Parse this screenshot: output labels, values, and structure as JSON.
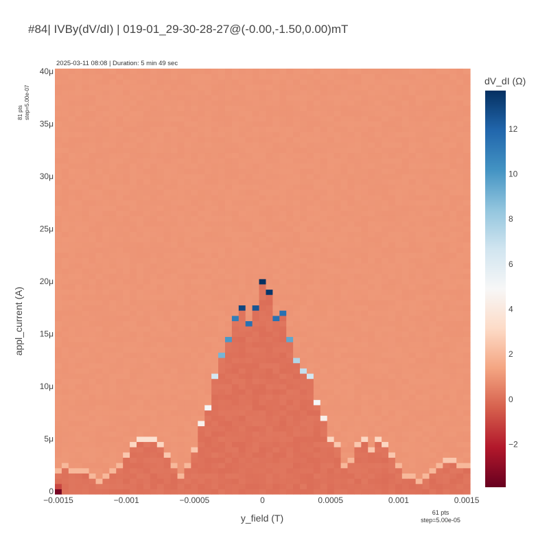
{
  "title": "#84| IVBy(dV/dI) | 019-01_29-30-28-27@(-0.00,-1.50,0.00)mT",
  "meta": "2025-03-11 08:08 | Duration: 5 min 49 sec",
  "y_steps": {
    "line1": "81 pts",
    "line2": "step=5.00e-07"
  },
  "x_steps": {
    "line1": "61 pts",
    "line2": "step=5.00e-05"
  },
  "chart_data": {
    "type": "heatmap",
    "title": "#84| IVBy(dV/dI) | 019-01_29-30-28-27@(-0.00,-1.50,0.00)mT",
    "xlabel": "y_field (T)",
    "ylabel": "appl_current (A)",
    "colorbar_label": "dV_dI (Ω)",
    "colorscale": "RdBu (reversed: red = low, blue = high)",
    "x": {
      "start": -0.0015,
      "stop": 0.0015,
      "points": 61,
      "step": 5e-05
    },
    "y": {
      "start": 0,
      "stop": 4e-05,
      "points": 81,
      "step": 5e-07
    },
    "xlim": [
      -0.0015,
      0.0015
    ],
    "ylim": [
      0,
      4e-05
    ],
    "zlim": [
      -3.9,
      13.7
    ],
    "x_ticks": [
      {
        "v": -0.0015,
        "label": "−0.0015"
      },
      {
        "v": -0.001,
        "label": "−0.001"
      },
      {
        "v": -0.0005,
        "label": "−0.0005"
      },
      {
        "v": 0,
        "label": "0"
      },
      {
        "v": 0.0005,
        "label": "0.0005"
      },
      {
        "v": 0.001,
        "label": "0.001"
      },
      {
        "v": 0.0015,
        "label": "0.0015"
      }
    ],
    "y_ticks": [
      {
        "v": 0,
        "label": "0"
      },
      {
        "v": 5e-06,
        "label": "5μ"
      },
      {
        "v": 1e-05,
        "label": "10μ"
      },
      {
        "v": 1.5e-05,
        "label": "15μ"
      },
      {
        "v": 2e-05,
        "label": "20μ"
      },
      {
        "v": 2.5e-05,
        "label": "25μ"
      },
      {
        "v": 3e-05,
        "label": "30μ"
      },
      {
        "v": 3.5e-05,
        "label": "35μ"
      },
      {
        "v": 4e-05,
        "label": "40μ"
      }
    ],
    "colorbar_ticks": [
      {
        "v": -2,
        "label": "−2"
      },
      {
        "v": 0,
        "label": "0"
      },
      {
        "v": 2,
        "label": "2"
      },
      {
        "v": 4,
        "label": "4"
      },
      {
        "v": 6,
        "label": "6"
      },
      {
        "v": 8,
        "label": "8"
      },
      {
        "v": 10,
        "label": "10"
      },
      {
        "v": 12,
        "label": "12"
      }
    ],
    "regions": {
      "normal_state_value": 1.0,
      "superconducting_value": 0.1,
      "origin_corner_value": -3.5
    },
    "critical_current_profile_A": [
      2e-06,
      2.5e-06,
      2e-06,
      2e-06,
      2e-06,
      1.5e-06,
      1e-06,
      1.5e-06,
      2e-06,
      2.5e-06,
      3.5e-06,
      4.5e-06,
      5e-06,
      5e-06,
      5e-06,
      4.5e-06,
      3.5e-06,
      2.5e-06,
      1.5e-06,
      2.5e-06,
      4e-06,
      6.5e-06,
      8e-06,
      1.1e-05,
      1.3e-05,
      1.45e-05,
      1.65e-05,
      1.75e-05,
      1.6e-05,
      1.75e-05,
      2e-05,
      1.9e-05,
      1.65e-05,
      1.7e-05,
      1.45e-05,
      1.25e-05,
      1.15e-05,
      1.1e-05,
      8.5e-06,
      7e-06,
      5e-06,
      4.5e-06,
      2.5e-06,
      3e-06,
      4.5e-06,
      5e-06,
      4e-06,
      5e-06,
      4.5e-06,
      3.5e-06,
      2.5e-06,
      1.5e-06,
      1.5e-06,
      1e-06,
      1.5e-06,
      2e-06,
      2.5e-06,
      3e-06,
      3e-06,
      2.5e-06,
      2.5e-06
    ],
    "critical_current_peak_dVdI": [
      2.0,
      2.0,
      2.0,
      2.0,
      2.0,
      2.0,
      2.0,
      2.0,
      2.0,
      2.0,
      2.5,
      3.0,
      3.5,
      3.5,
      3.5,
      3.0,
      2.5,
      2.0,
      2.0,
      2.0,
      2.5,
      4.5,
      5.0,
      6.5,
      9.0,
      10.0,
      11.0,
      13.0,
      11.5,
      12.5,
      13.7,
      13.5,
      11.5,
      11.5,
      9.5,
      7.5,
      7.0,
      6.5,
      5.0,
      4.5,
      3.0,
      2.5,
      2.0,
      2.0,
      2.5,
      3.0,
      2.5,
      3.0,
      3.0,
      2.5,
      2.0,
      2.0,
      2.0,
      2.0,
      2.0,
      2.0,
      2.0,
      2.5,
      2.5,
      2.0,
      2.0
    ],
    "colors": {
      "colorscale_stops": [
        "#67001f",
        "#b2182b",
        "#d6604d",
        "#f4a582",
        "#fddbc7",
        "#f7f7f7",
        "#d1e5f0",
        "#92c5de",
        "#4393c3",
        "#2166ac",
        "#053061"
      ],
      "axis_text": "#444444"
    }
  }
}
